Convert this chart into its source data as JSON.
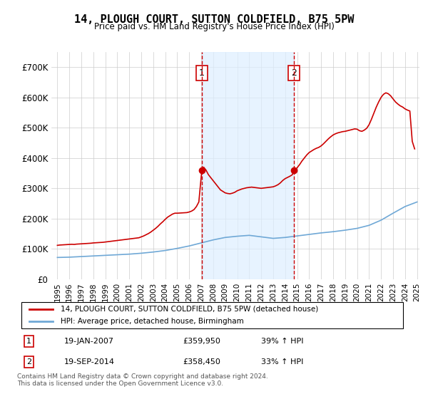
{
  "title": "14, PLOUGH COURT, SUTTON COLDFIELD, B75 5PW",
  "subtitle": "Price paid vs. HM Land Registry's House Price Index (HPI)",
  "ylabel": "",
  "ylim": [
    0,
    750000
  ],
  "yticks": [
    0,
    100000,
    200000,
    300000,
    400000,
    500000,
    600000,
    700000
  ],
  "ytick_labels": [
    "£0",
    "£100K",
    "£200K",
    "£300K",
    "£400K",
    "£500K",
    "£600K",
    "£700K"
  ],
  "background_color": "#ffffff",
  "plot_bg_color": "#ffffff",
  "grid_color": "#cccccc",
  "hpi_color": "#6fa8d6",
  "price_color": "#cc0000",
  "marker_color": "#cc0000",
  "shade_color": "#ddeeff",
  "sale1_date_idx": 12.05,
  "sale2_date_idx": 19.72,
  "sale1_price": 359950,
  "sale2_price": 358450,
  "sale1_label": "1",
  "sale2_label": "2",
  "legend_line1": "14, PLOUGH COURT, SUTTON COLDFIELD, B75 5PW (detached house)",
  "legend_line2": "HPI: Average price, detached house, Birmingham",
  "table_entries": [
    {
      "num": "1",
      "date": "19-JAN-2007",
      "price": "£359,950",
      "hpi": "39% ↑ HPI"
    },
    {
      "num": "2",
      "date": "19-SEP-2014",
      "price": "£358,450",
      "hpi": "33% ↑ HPI"
    }
  ],
  "footnote": "Contains HM Land Registry data © Crown copyright and database right 2024.\nThis data is licensed under the Open Government Licence v3.0.",
  "x_start_year": 1995,
  "x_end_year": 2025,
  "hpi_data": [
    72000,
    73000,
    75000,
    77000,
    79000,
    81000,
    83000,
    86000,
    90000,
    95000,
    102000,
    110000,
    120000,
    130000,
    138000,
    142000,
    145000,
    140000,
    135000,
    138000,
    143000,
    148000,
    153000,
    157000,
    162000,
    168000,
    178000,
    195000,
    218000,
    240000,
    255000
  ],
  "price_data_x": [
    1995.0,
    1995.2,
    1995.4,
    1995.6,
    1995.8,
    1996.0,
    1996.2,
    1996.4,
    1996.6,
    1996.8,
    1997.0,
    1997.2,
    1997.4,
    1997.6,
    1997.8,
    1998.0,
    1998.2,
    1998.4,
    1998.6,
    1998.8,
    1999.0,
    1999.2,
    1999.4,
    1999.6,
    1999.8,
    2000.0,
    2000.2,
    2000.4,
    2000.6,
    2000.8,
    2001.0,
    2001.2,
    2001.4,
    2001.6,
    2001.8,
    2002.0,
    2002.2,
    2002.4,
    2002.6,
    2002.8,
    2003.0,
    2003.2,
    2003.4,
    2003.6,
    2003.8,
    2004.0,
    2004.2,
    2004.4,
    2004.6,
    2004.8,
    2005.0,
    2005.2,
    2005.4,
    2005.6,
    2005.8,
    2006.0,
    2006.2,
    2006.4,
    2006.6,
    2006.8,
    2007.05,
    2007.2,
    2007.4,
    2007.6,
    2007.8,
    2008.0,
    2008.2,
    2008.4,
    2008.6,
    2008.8,
    2009.0,
    2009.2,
    2009.4,
    2009.6,
    2009.8,
    2010.0,
    2010.2,
    2010.4,
    2010.6,
    2010.8,
    2011.0,
    2011.2,
    2011.4,
    2011.6,
    2011.8,
    2012.0,
    2012.2,
    2012.4,
    2012.6,
    2012.8,
    2013.0,
    2013.2,
    2013.4,
    2013.6,
    2013.8,
    2014.0,
    2014.2,
    2014.4,
    2014.6,
    2014.72,
    2014.8,
    2015.0,
    2015.2,
    2015.4,
    2015.6,
    2015.8,
    2016.0,
    2016.2,
    2016.4,
    2016.6,
    2016.8,
    2017.0,
    2017.2,
    2017.4,
    2017.6,
    2017.8,
    2018.0,
    2018.2,
    2018.4,
    2018.6,
    2018.8,
    2019.0,
    2019.2,
    2019.4,
    2019.6,
    2019.8,
    2020.0,
    2020.2,
    2020.4,
    2020.6,
    2020.8,
    2021.0,
    2021.2,
    2021.4,
    2021.6,
    2021.8,
    2022.0,
    2022.2,
    2022.4,
    2022.6,
    2022.8,
    2023.0,
    2023.2,
    2023.4,
    2023.6,
    2023.8,
    2024.0,
    2024.2,
    2024.4,
    2024.6,
    2024.8
  ],
  "price_data_y": [
    112000,
    113000,
    113500,
    114000,
    114500,
    115000,
    115500,
    115000,
    116000,
    116500,
    117000,
    117500,
    118000,
    118500,
    119000,
    120000,
    120500,
    121000,
    121500,
    122000,
    123000,
    124000,
    125000,
    126000,
    127000,
    128000,
    129000,
    130000,
    131000,
    132000,
    133000,
    134000,
    135000,
    136000,
    137000,
    140000,
    143000,
    147000,
    151000,
    156000,
    162000,
    168000,
    175000,
    183000,
    190000,
    198000,
    205000,
    210000,
    215000,
    218000,
    218000,
    218500,
    219000,
    219500,
    220000,
    222000,
    225000,
    230000,
    240000,
    255000,
    359950,
    370000,
    360000,
    345000,
    335000,
    325000,
    315000,
    305000,
    295000,
    290000,
    285000,
    283000,
    282000,
    284000,
    287000,
    292000,
    295000,
    298000,
    300000,
    302000,
    303000,
    304000,
    303000,
    302000,
    301000,
    300000,
    301000,
    302000,
    303000,
    304000,
    305000,
    308000,
    312000,
    318000,
    326000,
    332000,
    336000,
    340000,
    345000,
    358450,
    360000,
    368000,
    378000,
    390000,
    400000,
    410000,
    418000,
    423000,
    428000,
    432000,
    435000,
    440000,
    447000,
    455000,
    463000,
    470000,
    476000,
    480000,
    483000,
    485000,
    487000,
    488000,
    490000,
    492000,
    494000,
    496000,
    495000,
    490000,
    488000,
    492000,
    498000,
    510000,
    528000,
    548000,
    568000,
    585000,
    600000,
    610000,
    615000,
    612000,
    605000,
    595000,
    585000,
    578000,
    572000,
    568000,
    562000,
    558000,
    555000,
    455000,
    430000
  ]
}
